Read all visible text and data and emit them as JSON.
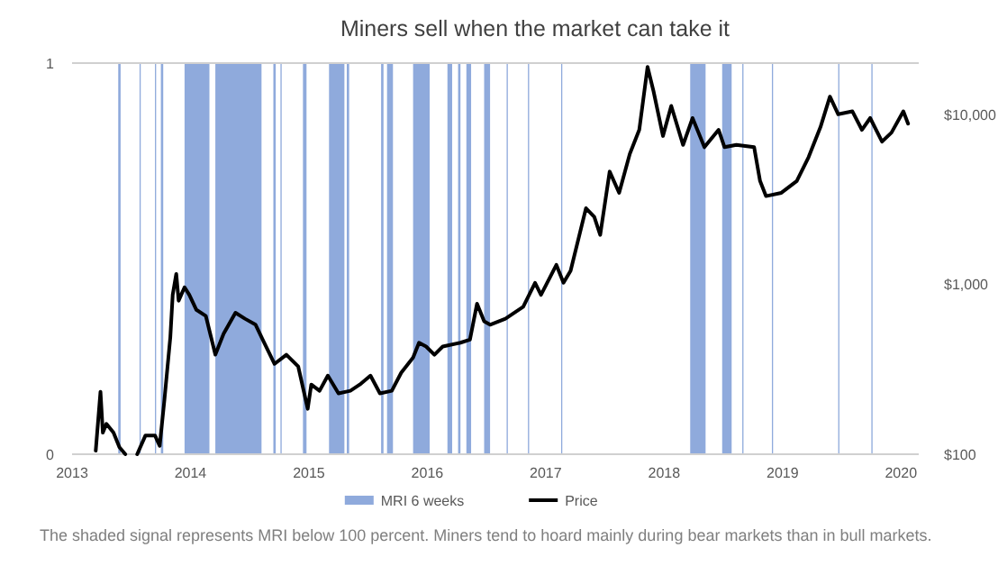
{
  "chart_data": {
    "type": "line",
    "title": "Miners sell when the market can take it",
    "xlim": [
      2013,
      2020.15
    ],
    "xticks": [
      2013,
      2014,
      2015,
      2016,
      2017,
      2018,
      2019,
      2020
    ],
    "ylim": [
      0,
      1
    ],
    "yticks": [
      0,
      1
    ],
    "y2lim": [
      100,
      20000
    ],
    "y2ticks": [
      {
        "value": 100,
        "label": "$100"
      },
      {
        "value": 1000,
        "label": "$1,000"
      },
      {
        "value": 10000,
        "label": "$10,000"
      }
    ],
    "log": "y2",
    "legend": "bottom",
    "series": [
      {
        "name": "MRI 6 weeks",
        "type": "area",
        "color": "#8faadc",
        "x": [
          2013,
          2013.39,
          2013.41,
          2013.57,
          2013.58,
          2013.7,
          2013.71,
          2013.75,
          2013.77,
          2013.95,
          2014.16,
          2014.21,
          2014.6,
          2014.7,
          2014.72,
          2014.76,
          2014.77,
          2014.95,
          2014.98,
          2015.17,
          2015.3,
          2015.32,
          2015.34,
          2015.61,
          2015.63,
          2015.66,
          2015.71,
          2015.88,
          2016.02,
          2016.17,
          2016.21,
          2016.26,
          2016.28,
          2016.33,
          2016.37,
          2016.48,
          2016.53,
          2016.67,
          2016.68,
          2016.85,
          2016.86,
          2017.13,
          2017.14,
          2018.22,
          2018.35,
          2018.49,
          2018.57,
          2018.66,
          2018.67,
          2018.91,
          2018.92,
          2019.47,
          2019.48,
          2019.75,
          2019.76,
          2020.15
        ],
        "values": [
          0,
          1,
          0,
          1,
          0,
          1,
          0,
          1,
          0,
          1,
          0,
          1,
          0,
          1,
          0,
          1,
          0,
          1,
          0,
          1,
          0,
          1,
          0,
          1,
          0,
          1,
          0,
          1,
          0,
          1,
          0,
          1,
          0,
          1,
          0,
          1,
          0,
          1,
          0,
          1,
          0,
          1,
          0,
          1,
          0,
          1,
          0,
          1,
          0,
          1,
          0,
          1,
          0,
          1,
          0,
          0
        ]
      },
      {
        "name": "Price",
        "axis": "y2",
        "color": "#000000",
        "x": [
          2013.2,
          2013.24,
          2013.26,
          2013.29,
          2013.35,
          2013.4,
          2013.45,
          2013.5,
          2013.55,
          2013.62,
          2013.7,
          2013.74,
          2013.78,
          2013.83,
          2013.85,
          2013.88,
          2013.9,
          2013.95,
          2013.99,
          2014.05,
          2014.13,
          2014.21,
          2014.28,
          2014.38,
          2014.46,
          2014.55,
          2014.61,
          2014.71,
          2014.81,
          2014.91,
          2014.99,
          2015.02,
          2015.09,
          2015.16,
          2015.25,
          2015.35,
          2015.43,
          2015.52,
          2015.6,
          2015.7,
          2015.78,
          2015.88,
          2015.93,
          2015.99,
          2016.06,
          2016.13,
          2016.28,
          2016.36,
          2016.42,
          2016.48,
          2016.53,
          2016.66,
          2016.81,
          2016.91,
          2016.96,
          2017.09,
          2017.15,
          2017.21,
          2017.34,
          2017.41,
          2017.46,
          2017.54,
          2017.62,
          2017.71,
          2017.79,
          2017.86,
          2017.91,
          2017.99,
          2018.06,
          2018.16,
          2018.24,
          2018.34,
          2018.46,
          2018.51,
          2018.61,
          2018.76,
          2018.81,
          2018.86,
          2018.99,
          2019.12,
          2019.22,
          2019.32,
          2019.4,
          2019.47,
          2019.59,
          2019.67,
          2019.74,
          2019.84,
          2019.92,
          2020.02,
          2020.06
        ],
        "values": [
          105,
          233,
          134,
          151,
          134,
          110,
          100,
          null,
          100,
          129,
          129,
          112,
          209,
          490,
          866,
          1150,
          800,
          960,
          866,
          707,
          650,
          385,
          512,
          680,
          627,
          578,
          472,
          340,
          385,
          328,
          185,
          257,
          236,
          290,
          228,
          236,
          257,
          290,
          228,
          236,
          302,
          370,
          453,
          430,
          385,
          430,
          453,
          472,
          768,
          605,
          578,
          627,
          737,
          1020,
          866,
          1300,
          1020,
          1200,
          2800,
          2490,
          1950,
          4600,
          3450,
          5850,
          8100,
          19000,
          13700,
          7450,
          11200,
          6600,
          9500,
          6400,
          8100,
          6400,
          6600,
          6400,
          4050,
          3300,
          3450,
          4050,
          5600,
          8400,
          12700,
          10000,
          10400,
          8100,
          9500,
          6900,
          7800,
          10400,
          8800
        ]
      }
    ],
    "annotations": [
      "The shaded signal represents MRI below 100 percent. Miners tend to hoard mainly during bear markets than in bull markets."
    ]
  }
}
